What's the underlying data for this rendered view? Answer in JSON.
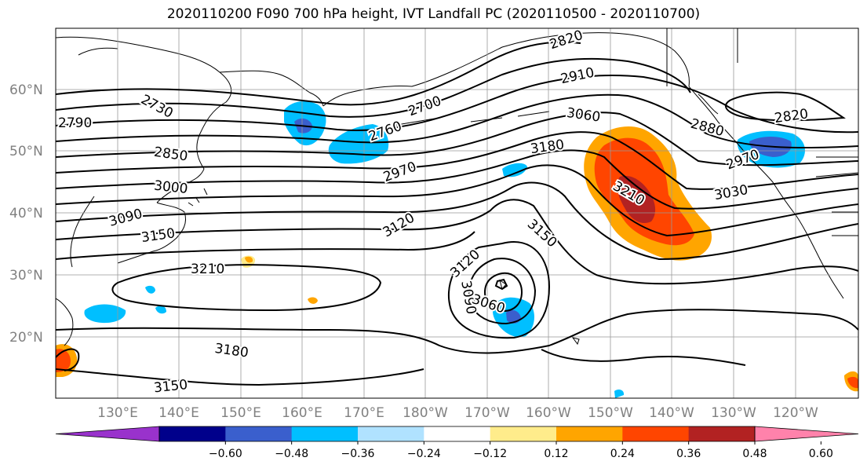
{
  "title": "2020110200 F090 700 hPa height, IVT Landfall PC (2020110500 - 2020110700)",
  "lat_labels": [
    "60°N",
    "50°N",
    "40°N",
    "30°N",
    "20°N"
  ],
  "lon_labels": [
    "130°E",
    "140°E",
    "150°E",
    "160°E",
    "170°E",
    "180°W",
    "170°W",
    "160°W",
    "150°W",
    "140°W",
    "130°W",
    "120°W"
  ],
  "contour_labels": [
    "2820",
    "2910",
    "3060",
    "3180",
    "3210",
    "3030",
    "2970",
    "2880",
    "2820",
    "2700",
    "2760",
    "2790",
    "2730",
    "2850",
    "3000",
    "3090",
    "3150",
    "3210",
    "2970",
    "3120",
    "3150",
    "3120",
    "3090",
    "3060",
    "3180",
    "3150"
  ],
  "colorbar": {
    "ticks": [
      "−0.60",
      "−0.48",
      "−0.36",
      "−0.24",
      "−0.12",
      "0.12",
      "0.24",
      "0.36",
      "0.48",
      "0.60"
    ],
    "colors": [
      "#9932cc",
      "#00008b",
      "#3a5fcd",
      "#00bfff",
      "#b0e2ff",
      "#ffffff",
      "#ffec8b",
      "#ffa500",
      "#ff4500",
      "#b22222",
      "#ff82ab"
    ]
  },
  "shading": {
    "negative_color": "#00bfff",
    "strong_negative_color": "#3a5fcd",
    "positive_color": "#ffa500",
    "strong_positive_color": "#ff4500",
    "peak_positive_color": "#b22222"
  }
}
